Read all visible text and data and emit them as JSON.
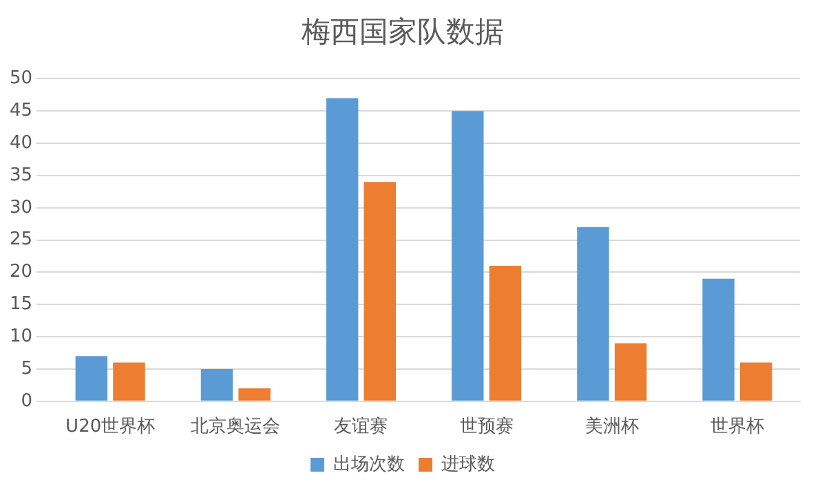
{
  "chart_data": {
    "type": "bar",
    "title": "梅西国家队数据",
    "categories": [
      "U20世界杯",
      "北京奥运会",
      "友谊赛",
      "世预赛",
      "美洲杯",
      "世界杯"
    ],
    "series": [
      {
        "name": "出场次数",
        "color": "#5b9bd5",
        "values": [
          7,
          5,
          47,
          45,
          27,
          19
        ]
      },
      {
        "name": "进球数",
        "color": "#ed7d31",
        "values": [
          6,
          2,
          34,
          21,
          9,
          6
        ]
      }
    ],
    "ylim": [
      0,
      50
    ],
    "yticks": [
      0,
      5,
      10,
      15,
      20,
      25,
      30,
      35,
      40,
      45,
      50
    ],
    "grid": "y",
    "legend": "bottom"
  }
}
